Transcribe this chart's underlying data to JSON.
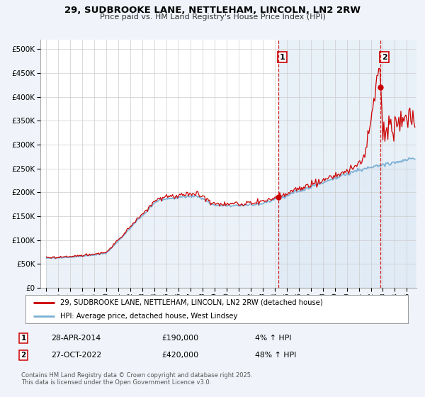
{
  "title1": "29, SUDBROOKE LANE, NETTLEHAM, LINCOLN, LN2 2RW",
  "title2": "Price paid vs. HM Land Registry's House Price Index (HPI)",
  "legend_property": "29, SUDBROOKE LANE, NETTLEHAM, LINCOLN, LN2 2RW (detached house)",
  "legend_hpi": "HPI: Average price, detached house, West Lindsey",
  "annotation1_label": "1",
  "annotation1_date": "28-APR-2014",
  "annotation1_price": "£190,000",
  "annotation1_hpi": "4% ↑ HPI",
  "annotation1_year": 2014.32,
  "annotation2_label": "2",
  "annotation2_date": "27-OCT-2022",
  "annotation2_price": "£420,000",
  "annotation2_hpi": "48% ↑ HPI",
  "annotation2_year": 2022.82,
  "footer1": "Contains HM Land Registry data © Crown copyright and database right 2025.",
  "footer2": "This data is licensed under the Open Government Licence v3.0.",
  "property_color": "#cc0000",
  "hpi_line_color": "#7bafd4",
  "hpi_fill_color": "#dce9f5",
  "shade_color": "#e8f0f8",
  "background_color": "#f0f4fa",
  "plot_bg_color": "#ffffff",
  "grid_color": "#cccccc",
  "ylim_max": 520000,
  "xlim_min": 1994.5,
  "xlim_max": 2025.8
}
